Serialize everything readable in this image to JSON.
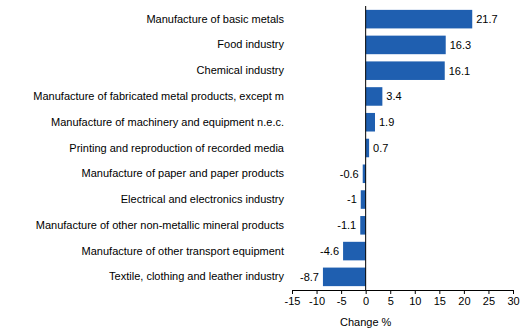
{
  "chart_data": {
    "type": "bar",
    "orientation": "horizontal",
    "categories": [
      "Manufacture of basic metals",
      "Food industry",
      "Chemical industry",
      "Manufacture of fabricated metal products, except m",
      "Manufacture of machinery and equipment n.e.c.",
      "Printing and reproduction of recorded media",
      "Manufacture of paper and paper products",
      "Electrical and electronics industry",
      "Manufacture of other non-metallic mineral products",
      "Manufacture of other transport equipment",
      "Textile, clothing and leather industry"
    ],
    "values": [
      21.7,
      16.3,
      16.1,
      3.4,
      1.9,
      0.7,
      -0.6,
      -1,
      -1.1,
      -4.6,
      -8.7
    ],
    "color": "#1f5fb0",
    "x_label": "Change %",
    "xlim": [
      -15,
      30
    ],
    "xticks": [
      -15,
      -10,
      -5,
      0,
      5,
      10,
      15,
      20,
      25,
      30
    ],
    "grid": false,
    "data_labels": true
  }
}
